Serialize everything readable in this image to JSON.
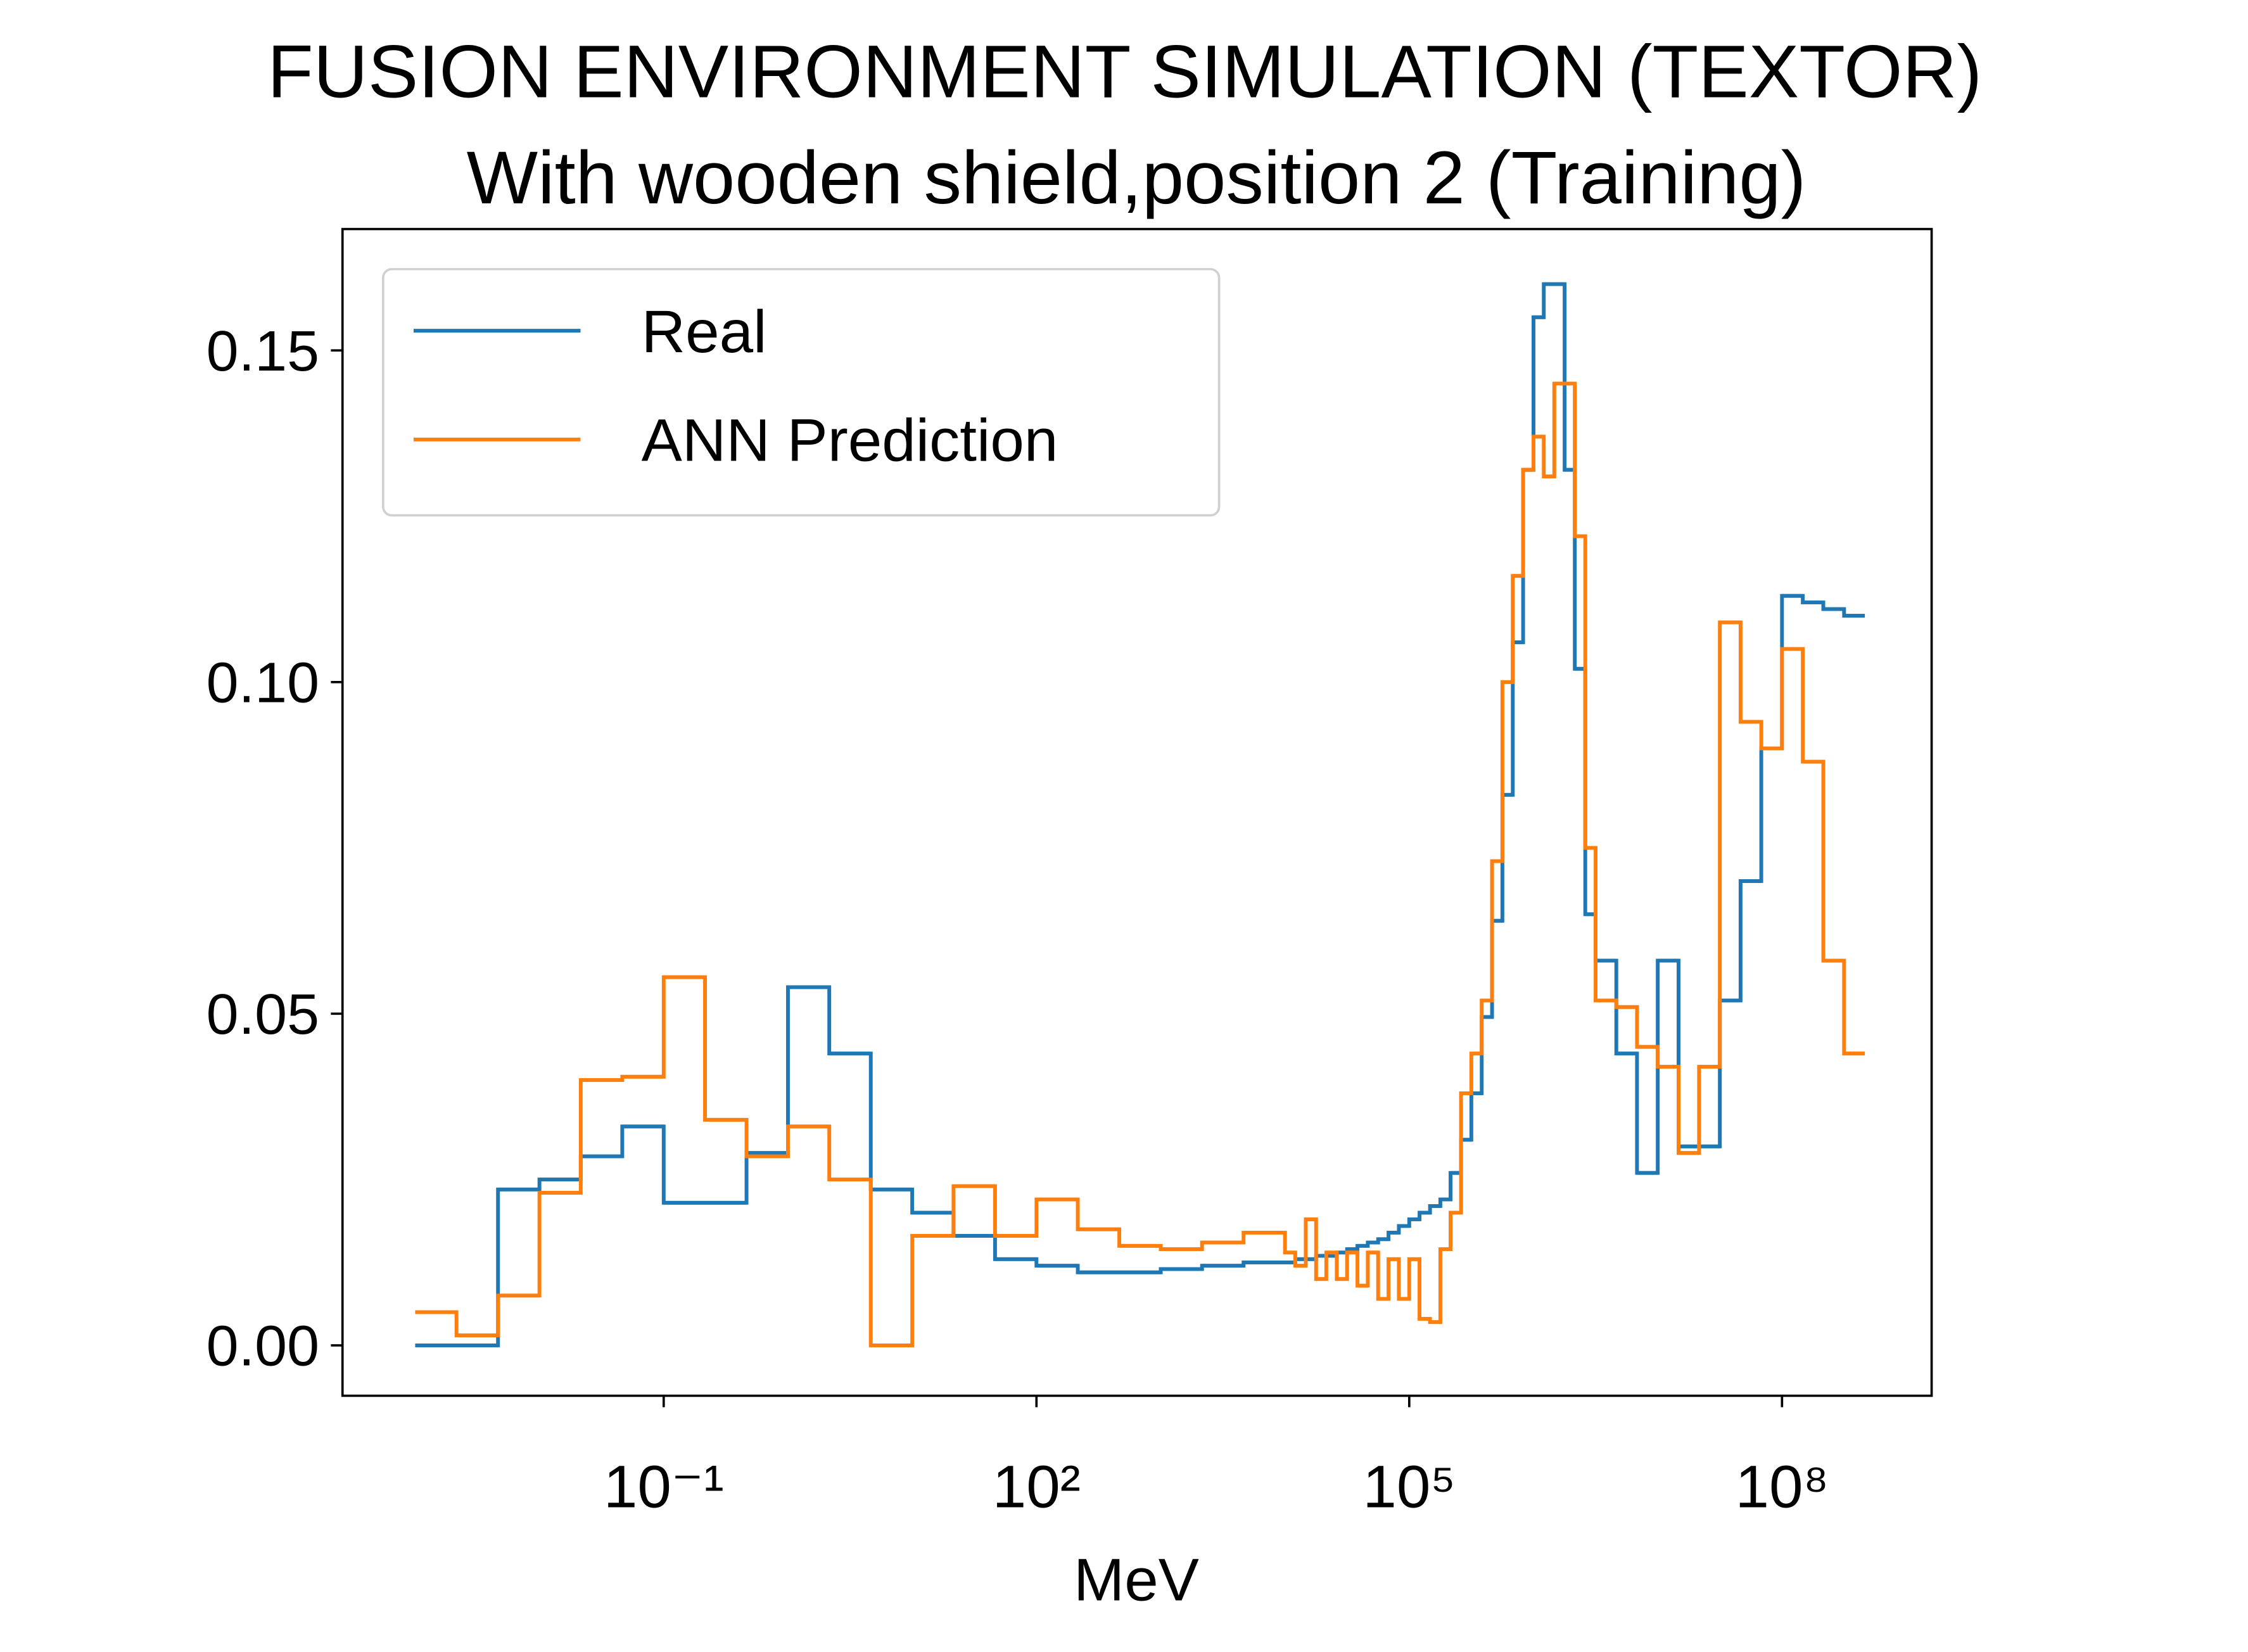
{
  "chart_data": {
    "type": "histogram",
    "title": "FUSION ENVIRONMENT SIMULATION (TEXTOR)",
    "subtitle": "With wooden shield,position 2 (Training)",
    "x_label": "MeV",
    "log_x": true,
    "bins": [
      0.001,
      0.00215,
      0.00464,
      0.01,
      0.0215,
      0.0464,
      0.1,
      0.215,
      0.464,
      1,
      2.15,
      4.64,
      10,
      21.5,
      46.4,
      100,
      215,
      464,
      1000,
      2150,
      4640,
      10000.0,
      12100.0,
      14700.0,
      17800.0,
      21500.0,
      26100.0,
      31600.0,
      38300.0,
      46400.0,
      56200.0,
      68100.0,
      82500.0,
      100000.0,
      121000.0,
      147000.0,
      178000.0,
      215000.0,
      261000.0,
      316000.0,
      383000.0,
      464000.0,
      562000.0,
      681000.0,
      825000.0,
      1000000.0,
      1210000.0,
      1470000.0,
      1780000.0,
      2150000.0,
      2610000.0,
      3160000.0,
      4640000.0,
      6810000.0,
      10000000.0,
      14700000.0,
      21500000.0,
      31600000.0,
      46400000.0,
      68100000.0,
      100000000.0,
      147000000.0,
      215000000.0,
      316000000.0,
      464000000.0
    ],
    "series": [
      {
        "name": "Real",
        "color": "#1f77b4",
        "values": [
          0,
          0,
          0.0235,
          0.025,
          0.0285,
          0.033,
          0.0215,
          0.0215,
          0.029,
          0.054,
          0.044,
          0.0235,
          0.02,
          0.0165,
          0.013,
          0.012,
          0.011,
          0.011,
          0.0115,
          0.012,
          0.0125,
          0.0125,
          0.013,
          0.013,
          0.0135,
          0.0135,
          0.014,
          0.0145,
          0.015,
          0.0155,
          0.016,
          0.017,
          0.018,
          0.019,
          0.02,
          0.021,
          0.022,
          0.026,
          0.031,
          0.038,
          0.0495,
          0.064,
          0.083,
          0.106,
          0.132,
          0.155,
          0.16,
          0.16,
          0.132,
          0.102,
          0.065,
          0.058,
          0.044,
          0.026,
          0.058,
          0.03,
          0.03,
          0.052,
          0.07,
          0.09,
          0.113,
          0.112,
          0.111,
          0.11
        ]
      },
      {
        "name": "ANN Prediction",
        "color": "#ff7f0e",
        "values": [
          0.005,
          0.0015,
          0.0075,
          0.023,
          0.04,
          0.0405,
          0.0555,
          0.034,
          0.0285,
          0.033,
          0.025,
          0,
          0.0165,
          0.024,
          0.0165,
          0.022,
          0.0175,
          0.015,
          0.0145,
          0.0155,
          0.017,
          0.014,
          0.012,
          0.019,
          0.01,
          0.014,
          0.01,
          0.014,
          0.009,
          0.014,
          0.007,
          0.013,
          0.007,
          0.013,
          0.004,
          0.0035,
          0.0145,
          0.02,
          0.038,
          0.044,
          0.052,
          0.073,
          0.1,
          0.116,
          0.132,
          0.137,
          0.131,
          0.145,
          0.145,
          0.122,
          0.075,
          0.052,
          0.051,
          0.045,
          0.042,
          0.029,
          0.042,
          0.109,
          0.094,
          0.09,
          0.105,
          0.088,
          0.058,
          0.044
        ]
      }
    ],
    "xlim": [
      0.00026,
      1600000000.0
    ],
    "xticks": [
      {
        "value": 0.1,
        "label": "10⁻¹"
      },
      {
        "value": 100,
        "label": "10²"
      },
      {
        "value": 100000,
        "label": "10⁵"
      },
      {
        "value": 100000000,
        "label": "10⁸"
      }
    ],
    "ylim": [
      -0.0076,
      0.1683
    ],
    "yticks": [
      {
        "value": 0,
        "label": "0.00"
      },
      {
        "value": 0.05,
        "label": "0.05"
      },
      {
        "value": 0.1,
        "label": "0.10"
      },
      {
        "value": 0.15,
        "label": "0.15"
      }
    ],
    "legend_position": "upper left"
  }
}
